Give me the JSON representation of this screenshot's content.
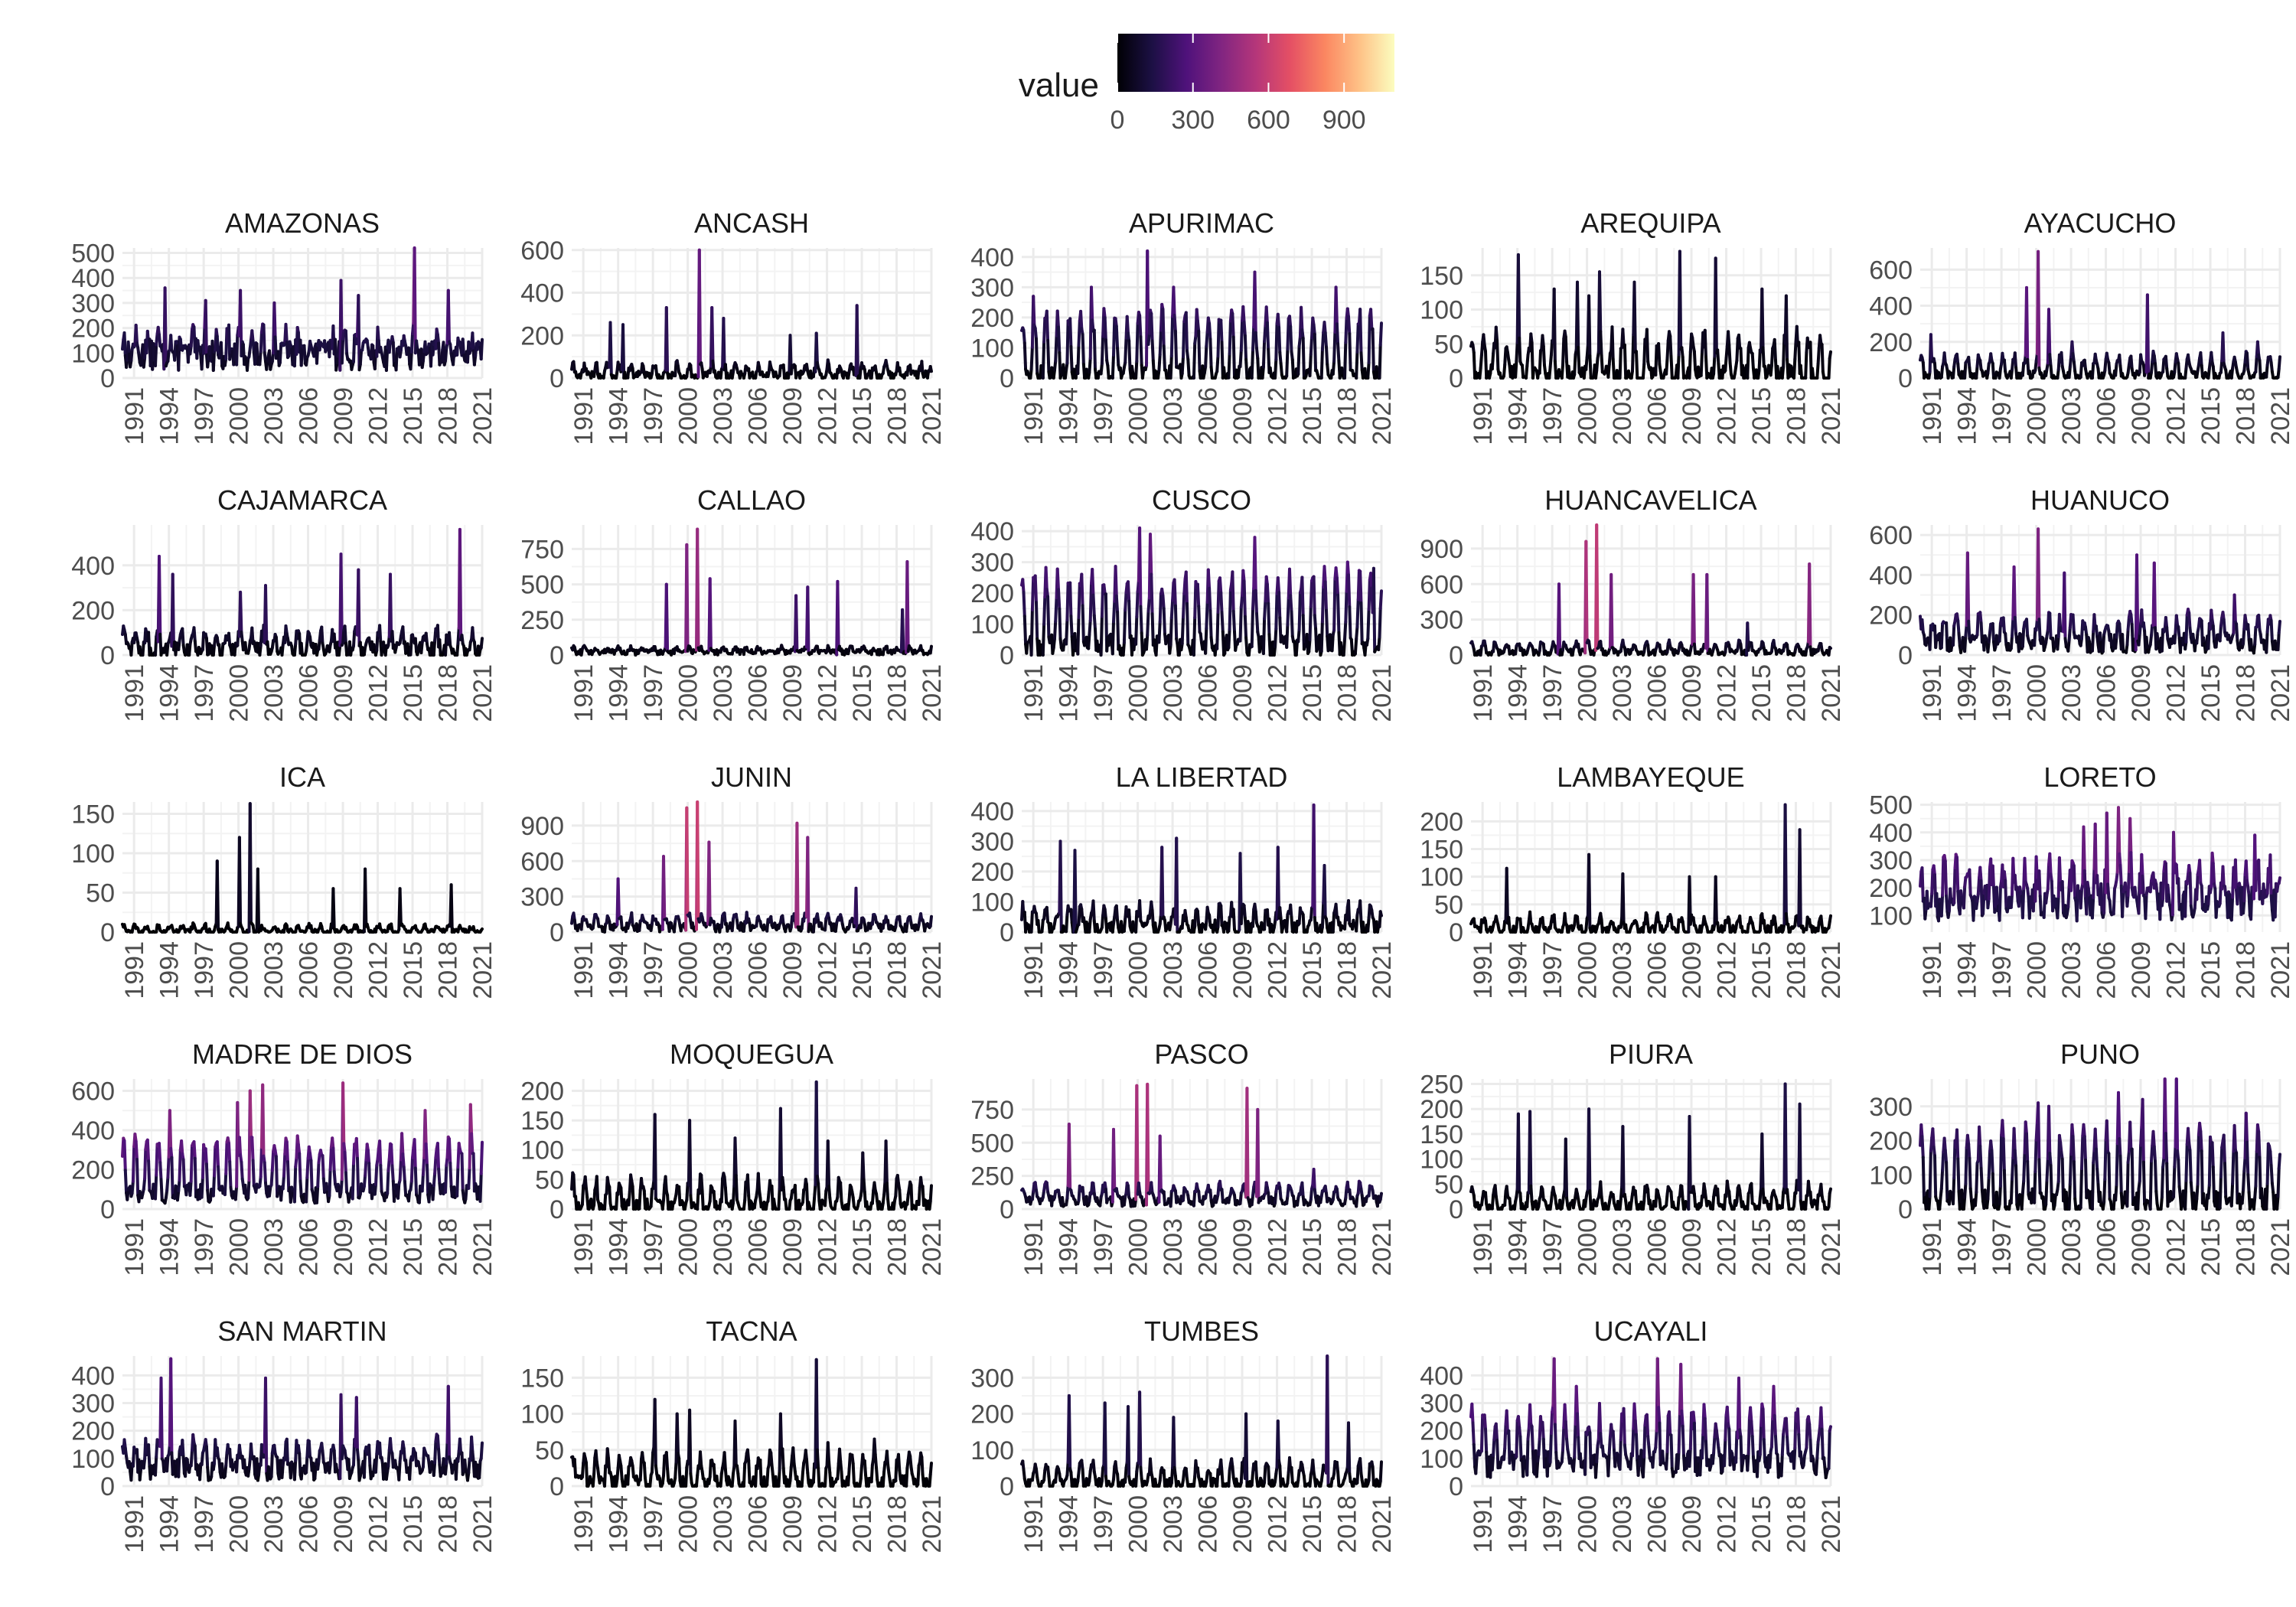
{
  "chart_data": {
    "type": "line",
    "colorbar": {
      "title": "value",
      "ticks": [
        "0",
        "300",
        "600",
        "900"
      ],
      "range": [
        0,
        1100
      ],
      "palette": "magma",
      "stops": [
        "#000004",
        "#1c1044",
        "#4f127b",
        "#812581",
        "#b5367a",
        "#e55064",
        "#fb8761",
        "#fec287",
        "#fcfdbf"
      ]
    },
    "x_ticks": [
      "1991",
      "1994",
      "1997",
      "2000",
      "2003",
      "2006",
      "2009",
      "2012",
      "2015",
      "2018",
      "2021"
    ],
    "x_range": [
      1990,
      2021
    ],
    "grid": true,
    "panels": [
      {
        "name": "AMAZONAS",
        "y_ticks": [
          0,
          100,
          200,
          300,
          400,
          500
        ],
        "ylim": [
          0,
          520
        ],
        "base": 90,
        "amp": 70,
        "noise": 60,
        "peaks": [
          [
            1993.7,
            360
          ],
          [
            1997.2,
            310
          ],
          [
            2000.2,
            350
          ],
          [
            2003.1,
            300
          ],
          [
            2008.8,
            390
          ],
          [
            2010.3,
            330
          ],
          [
            2015.2,
            520
          ],
          [
            2018.1,
            350
          ]
        ]
      },
      {
        "name": "ANCASH",
        "y_ticks": [
          0,
          200,
          400,
          600
        ],
        "ylim": [
          0,
          610
        ],
        "base": 10,
        "amp": 50,
        "noise": 25,
        "peaks": [
          [
            1993.3,
            260
          ],
          [
            1994.4,
            250
          ],
          [
            1998.2,
            330
          ],
          [
            2001.0,
            600
          ],
          [
            2002.1,
            330
          ],
          [
            2003.1,
            280
          ],
          [
            2008.8,
            200
          ],
          [
            2011.1,
            210
          ],
          [
            2014.6,
            340
          ]
        ]
      },
      {
        "name": "APURIMAC",
        "y_ticks": [
          0,
          100,
          200,
          300,
          400
        ],
        "ylim": [
          0,
          430
        ],
        "base": 5,
        "amp": 200,
        "noise": 40,
        "peaks": [
          [
            1991.0,
            270
          ],
          [
            1996.0,
            300
          ],
          [
            2000.8,
            420
          ],
          [
            2003.1,
            300
          ],
          [
            2010.1,
            350
          ],
          [
            2017.1,
            300
          ]
        ]
      },
      {
        "name": "AREQUIPA",
        "y_ticks": [
          0,
          50,
          100,
          150
        ],
        "ylim": [
          0,
          190
        ],
        "base": 0,
        "amp": 60,
        "noise": 20,
        "peaks": [
          [
            1994.1,
            180
          ],
          [
            1997.2,
            130
          ],
          [
            1999.2,
            140
          ],
          [
            2000.2,
            120
          ],
          [
            2001.1,
            155
          ],
          [
            2004.1,
            140
          ],
          [
            2008.0,
            185
          ],
          [
            2011.1,
            175
          ],
          [
            2015.1,
            130
          ],
          [
            2017.2,
            120
          ]
        ]
      },
      {
        "name": "AYACUCHO",
        "y_ticks": [
          0,
          200,
          400,
          600
        ],
        "ylim": [
          0,
          720
        ],
        "base": 10,
        "amp": 110,
        "noise": 30,
        "peaks": [
          [
            1990.9,
            240
          ],
          [
            1999.2,
            500
          ],
          [
            2000.2,
            700
          ],
          [
            2001.1,
            380
          ],
          [
            2003.1,
            200
          ],
          [
            2009.6,
            460
          ],
          [
            2016.1,
            250
          ],
          [
            2019.1,
            200
          ]
        ]
      },
      {
        "name": "CAJAMARCA",
        "y_ticks": [
          0,
          200,
          400
        ],
        "ylim": [
          0,
          580
        ],
        "base": 20,
        "amp": 80,
        "noise": 40,
        "peaks": [
          [
            1993.2,
            440
          ],
          [
            1994.3,
            360
          ],
          [
            2000.2,
            280
          ],
          [
            2002.3,
            310
          ],
          [
            2008.8,
            450
          ],
          [
            2010.3,
            380
          ],
          [
            2013.1,
            360
          ],
          [
            2019.1,
            560
          ]
        ]
      },
      {
        "name": "CALLAO",
        "y_ticks": [
          0,
          250,
          500,
          750
        ],
        "ylim": [
          0,
          920
        ],
        "base": 20,
        "amp": 30,
        "noise": 20,
        "peaks": [
          [
            1998.2,
            500
          ],
          [
            1999.9,
            780
          ],
          [
            2000.8,
            890
          ],
          [
            2001.9,
            540
          ],
          [
            2009.3,
            420
          ],
          [
            2010.3,
            480
          ],
          [
            2012.9,
            520
          ],
          [
            2018.9,
            660
          ],
          [
            2018.5,
            320
          ]
        ]
      },
      {
        "name": "CUSCO",
        "y_ticks": [
          0,
          100,
          200,
          300,
          400
        ],
        "ylim": [
          0,
          420
        ],
        "base": 30,
        "amp": 220,
        "noise": 40,
        "peaks": [
          [
            1991.0,
            250
          ],
          [
            2000.2,
            410
          ],
          [
            2001.1,
            390
          ],
          [
            2010.1,
            380
          ],
          [
            2018.1,
            300
          ],
          [
            2020.3,
            280
          ]
        ]
      },
      {
        "name": "HUANCAVELICA",
        "y_ticks": [
          0,
          300,
          600,
          900
        ],
        "ylim": [
          0,
          1100
        ],
        "base": 20,
        "amp": 80,
        "noise": 30,
        "peaks": [
          [
            1997.6,
            600
          ],
          [
            1999.9,
            960
          ],
          [
            2000.8,
            1100
          ],
          [
            2002.1,
            680
          ],
          [
            2009.2,
            680
          ],
          [
            2010.3,
            680
          ],
          [
            2013.8,
            270
          ],
          [
            2019.2,
            770
          ]
        ]
      },
      {
        "name": "HUANUCO",
        "y_ticks": [
          0,
          200,
          400,
          600
        ],
        "ylim": [
          0,
          650
        ],
        "base": 60,
        "amp": 120,
        "noise": 50,
        "peaks": [
          [
            1994.1,
            510
          ],
          [
            1998.1,
            440
          ],
          [
            2000.2,
            630
          ],
          [
            2002.4,
            410
          ],
          [
            2008.7,
            500
          ],
          [
            2010.2,
            460
          ],
          [
            2017.1,
            300
          ]
        ]
      },
      {
        "name": "ICA",
        "y_ticks": [
          0,
          50,
          100,
          150
        ],
        "ylim": [
          0,
          165
        ],
        "base": 0,
        "amp": 8,
        "noise": 4,
        "peaks": [
          [
            1998.2,
            90
          ],
          [
            2000.1,
            120
          ],
          [
            2001.0,
            163
          ],
          [
            2001.7,
            80
          ],
          [
            2008.2,
            55
          ],
          [
            2010.9,
            80
          ],
          [
            2013.9,
            55
          ],
          [
            2018.3,
            60
          ]
        ]
      },
      {
        "name": "JUNIN",
        "y_ticks": [
          0,
          300,
          600,
          900
        ],
        "ylim": [
          0,
          1100
        ],
        "base": 40,
        "amp": 90,
        "noise": 40,
        "peaks": [
          [
            1994.0,
            450
          ],
          [
            1997.9,
            640
          ],
          [
            1999.9,
            1050
          ],
          [
            2000.8,
            1100
          ],
          [
            2001.8,
            760
          ],
          [
            2009.4,
            920
          ],
          [
            2010.3,
            800
          ],
          [
            2014.5,
            370
          ]
        ]
      },
      {
        "name": "LA LIBERTAD",
        "y_ticks": [
          0,
          100,
          200,
          300,
          400
        ],
        "ylim": [
          0,
          430
        ],
        "base": 10,
        "amp": 70,
        "noise": 30,
        "peaks": [
          [
            1993.3,
            300
          ],
          [
            1994.6,
            270
          ],
          [
            2002.1,
            280
          ],
          [
            2003.3,
            310
          ],
          [
            2008.8,
            260
          ],
          [
            2012.1,
            280
          ],
          [
            2015.2,
            420
          ],
          [
            2016.1,
            220
          ]
        ]
      },
      {
        "name": "LAMBAYEQUE",
        "y_ticks": [
          0,
          50,
          100,
          150,
          200
        ],
        "ylim": [
          0,
          235
        ],
        "base": 2,
        "amp": 25,
        "noise": 10,
        "peaks": [
          [
            1993.1,
            115
          ],
          [
            2000.2,
            140
          ],
          [
            2003.1,
            105
          ],
          [
            2008.8,
            100
          ],
          [
            2011.1,
            100
          ],
          [
            2017.1,
            230
          ],
          [
            2018.3,
            185
          ]
        ]
      },
      {
        "name": "LORETO",
        "y_ticks": [
          100,
          200,
          300,
          400,
          500
        ],
        "ylim": [
          40,
          510
        ],
        "base": 150,
        "amp": 120,
        "noise": 70,
        "peaks": [
          [
            2004.1,
            420
          ],
          [
            2005.1,
            430
          ],
          [
            2006.1,
            470
          ],
          [
            2007.1,
            490
          ],
          [
            2008.1,
            450
          ],
          [
            2011.8,
            400
          ],
          [
            2018.8,
            390
          ]
        ]
      },
      {
        "name": "MADRE DE DIOS",
        "y_ticks": [
          0,
          200,
          400,
          600
        ],
        "ylim": [
          0,
          660
        ],
        "base": 80,
        "amp": 260,
        "noise": 50,
        "peaks": [
          [
            1994.1,
            500
          ],
          [
            1999.9,
            540
          ],
          [
            2001.0,
            600
          ],
          [
            2002.1,
            630
          ],
          [
            2009.0,
            640
          ],
          [
            2016.1,
            500
          ],
          [
            2020.0,
            530
          ]
        ]
      },
      {
        "name": "MOQUEGUA",
        "y_ticks": [
          0,
          50,
          100,
          150,
          200
        ],
        "ylim": [
          0,
          220
        ],
        "base": 2,
        "amp": 45,
        "noise": 15,
        "peaks": [
          [
            1997.2,
            160
          ],
          [
            2000.2,
            150
          ],
          [
            2004.1,
            120
          ],
          [
            2008.0,
            170
          ],
          [
            2011.1,
            215
          ],
          [
            2012.1,
            115
          ],
          [
            2015.1,
            95
          ],
          [
            2017.1,
            115
          ]
        ]
      },
      {
        "name": "PASCO",
        "y_ticks": [
          0,
          250,
          500,
          750
        ],
        "ylim": [
          0,
          980
        ],
        "base": 60,
        "amp": 110,
        "noise": 40,
        "peaks": [
          [
            1994.1,
            640
          ],
          [
            1997.9,
            600
          ],
          [
            1999.9,
            930
          ],
          [
            2000.8,
            940
          ],
          [
            2001.9,
            550
          ],
          [
            2009.4,
            910
          ],
          [
            2010.3,
            750
          ],
          [
            2015.2,
            300
          ]
        ]
      },
      {
        "name": "PIURA",
        "y_ticks": [
          0,
          50,
          100,
          150,
          200,
          250
        ],
        "ylim": [
          0,
          260
        ],
        "base": 3,
        "amp": 40,
        "noise": 15,
        "peaks": [
          [
            1994.1,
            190
          ],
          [
            1995.1,
            195
          ],
          [
            1998.2,
            140
          ],
          [
            2000.2,
            200
          ],
          [
            2003.1,
            165
          ],
          [
            2008.8,
            185
          ],
          [
            2015.1,
            150
          ],
          [
            2017.1,
            250
          ],
          [
            2018.3,
            210
          ]
        ]
      },
      {
        "name": "PUNO",
        "y_ticks": [
          0,
          100,
          200,
          300
        ],
        "ylim": [
          0,
          380
        ],
        "base": 20,
        "amp": 200,
        "noise": 40,
        "peaks": [
          [
            1990.9,
            170
          ],
          [
            2000.2,
            310
          ],
          [
            2001.1,
            300
          ],
          [
            2007.1,
            340
          ],
          [
            2009.2,
            320
          ],
          [
            2011.1,
            380
          ],
          [
            2012.1,
            380
          ],
          [
            2018.1,
            280
          ]
        ]
      },
      {
        "name": "SAN MARTIN",
        "y_ticks": [
          0,
          100,
          200,
          300,
          400
        ],
        "ylim": [
          0,
          470
        ],
        "base": 60,
        "amp": 90,
        "noise": 40,
        "peaks": [
          [
            1993.3,
            390
          ],
          [
            1994.2,
            460
          ],
          [
            2002.3,
            390
          ],
          [
            2008.8,
            330
          ],
          [
            2010.2,
            320
          ],
          [
            2018.1,
            360
          ]
        ]
      },
      {
        "name": "TACNA",
        "y_ticks": [
          0,
          50,
          100,
          150
        ],
        "ylim": [
          0,
          180
        ],
        "base": 3,
        "amp": 40,
        "noise": 12,
        "peaks": [
          [
            1997.2,
            120
          ],
          [
            1999.1,
            100
          ],
          [
            2000.2,
            105
          ],
          [
            2004.1,
            90
          ],
          [
            2008.0,
            100
          ],
          [
            2011.1,
            175
          ],
          [
            2012.1,
            60
          ],
          [
            2016.1,
            65
          ]
        ]
      },
      {
        "name": "TUMBES",
        "y_ticks": [
          0,
          100,
          200,
          300
        ],
        "ylim": [
          0,
          360
        ],
        "base": 2,
        "amp": 60,
        "noise": 20,
        "peaks": [
          [
            1994.1,
            250
          ],
          [
            1997.2,
            230
          ],
          [
            1999.2,
            220
          ],
          [
            2000.2,
            260
          ],
          [
            2003.1,
            190
          ],
          [
            2009.3,
            200
          ],
          [
            2012.1,
            180
          ],
          [
            2016.3,
            360
          ],
          [
            2018.2,
            175
          ]
        ]
      },
      {
        "name": "UCAYALI",
        "y_ticks": [
          0,
          100,
          200,
          300,
          400
        ],
        "ylim": [
          0,
          470
        ],
        "base": 80,
        "amp": 170,
        "noise": 50,
        "peaks": [
          [
            1997.2,
            460
          ],
          [
            1999.1,
            360
          ],
          [
            2006.1,
            460
          ],
          [
            2008.1,
            440
          ],
          [
            2013.1,
            390
          ],
          [
            2016.1,
            360
          ]
        ]
      }
    ]
  }
}
